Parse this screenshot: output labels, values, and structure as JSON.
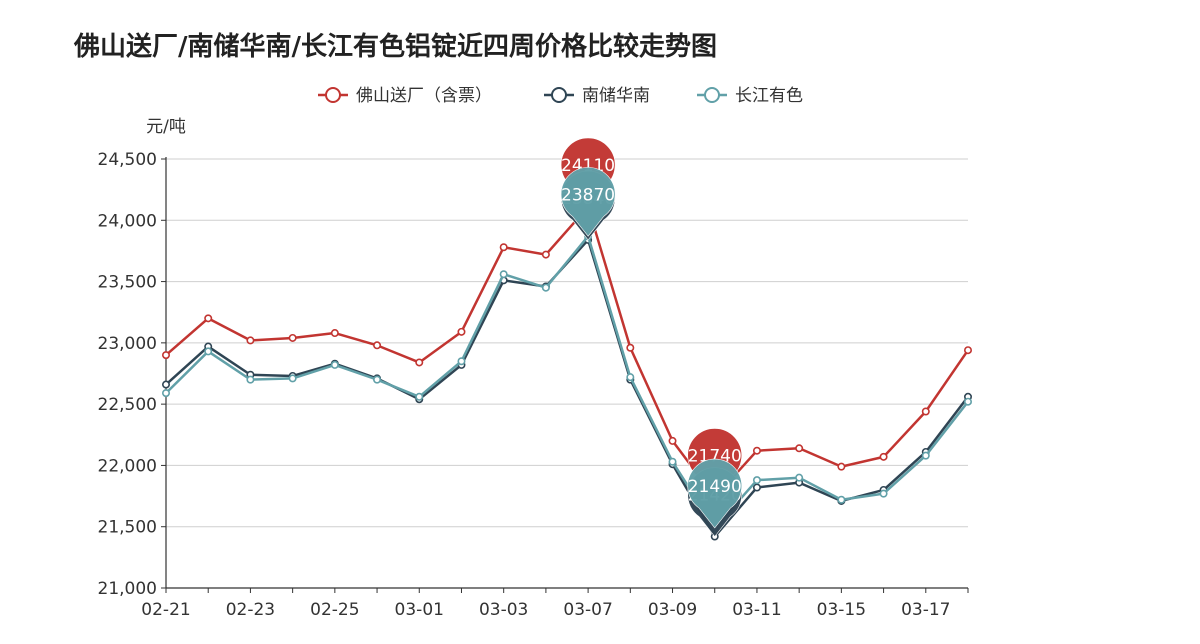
{
  "chart_data": {
    "type": "line",
    "title": "佛山送厂/南储华南/长江有色铝锭近四周价格比较走势图",
    "ylabel": "元/吨",
    "xlabel": "",
    "ylim": [
      21000,
      24500
    ],
    "yticks": [
      21000,
      21500,
      22000,
      22500,
      23000,
      23500,
      24000,
      24500
    ],
    "ytick_labels": [
      "21,000",
      "21,500",
      "22,000",
      "22,500",
      "23,000",
      "23,500",
      "24,000",
      "24,500"
    ],
    "x": [
      "02-21",
      "02-22",
      "02-23",
      "02-24",
      "02-25",
      "02-26",
      "03-01",
      "03-02",
      "03-03",
      "03-04",
      "03-07",
      "03-08",
      "03-09",
      "03-10",
      "03-11",
      "03-14",
      "03-15",
      "03-16",
      "03-17",
      "03-18"
    ],
    "x_tick_labels": [
      "02-21",
      "02-23",
      "02-25",
      "03-01",
      "03-03",
      "03-07",
      "03-09",
      "03-11",
      "03-15",
      "03-17"
    ],
    "legend_position": "top-center",
    "grid": true,
    "series": [
      {
        "name": "佛山送厂（含票）",
        "color": "#c23531",
        "values": [
          22900,
          23200,
          23020,
          23040,
          23080,
          22980,
          22840,
          23090,
          23780,
          23720,
          24110,
          22960,
          22200,
          21740,
          22120,
          22140,
          21990,
          22070,
          22440,
          22940
        ]
      },
      {
        "name": "南储华南",
        "color": "#2f4554",
        "values": [
          22660,
          22970,
          22740,
          22730,
          22830,
          22710,
          22540,
          22820,
          23510,
          23460,
          23840,
          22700,
          22010,
          21420,
          21820,
          21860,
          21710,
          21800,
          22110,
          22560
        ]
      },
      {
        "name": "长江有色",
        "color": "#61a0a8",
        "values": [
          22590,
          22930,
          22700,
          22710,
          22820,
          22700,
          22560,
          22850,
          23560,
          23450,
          23870,
          22720,
          22030,
          21490,
          21880,
          21900,
          21720,
          21770,
          22080,
          22520
        ]
      }
    ],
    "markpoints": [
      {
        "series": 0,
        "index": 10,
        "label": "24110"
      },
      {
        "series": 0,
        "index": 13,
        "label": "21740"
      },
      {
        "series": 1,
        "index": 10,
        "label": "23840"
      },
      {
        "series": 1,
        "index": 13,
        "label": "21420"
      },
      {
        "series": 2,
        "index": 10,
        "label": "23870"
      },
      {
        "series": 2,
        "index": 13,
        "label": "21490"
      }
    ]
  }
}
